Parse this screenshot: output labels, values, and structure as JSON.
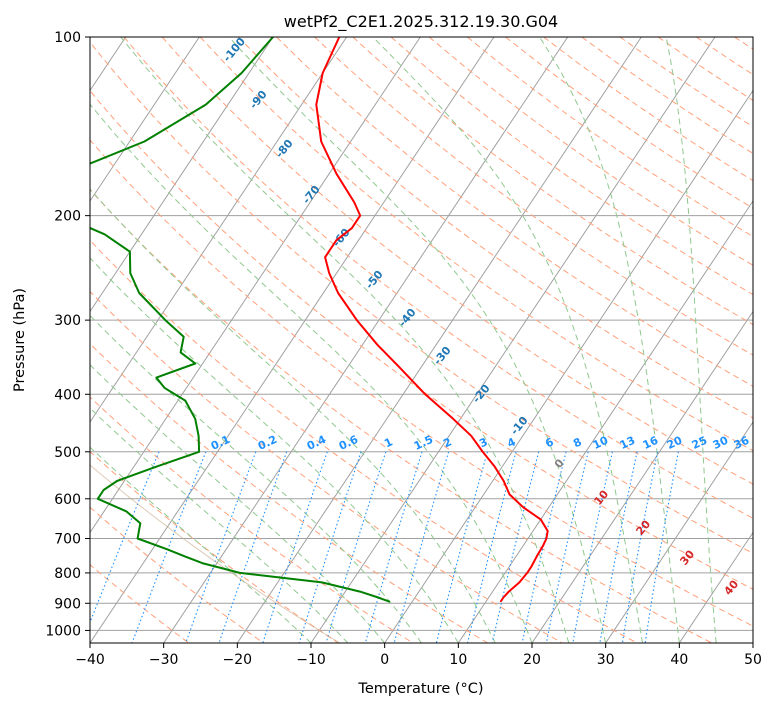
{
  "chart_data": {
    "type": "line",
    "subtype": "skew-T log-P diagram",
    "title": "wetPf2_C2E1.2025.312.19.30.G04",
    "xlabel": "Temperature (°C)",
    "ylabel": "Pressure (hPa)",
    "xlim": [
      -40,
      50
    ],
    "ylim": [
      1050,
      100
    ],
    "y_scale": "log",
    "x_ticks": [
      -40,
      -30,
      -20,
      -10,
      0,
      10,
      20,
      30,
      40,
      50
    ],
    "y_ticks": [
      100,
      200,
      300,
      400,
      500,
      600,
      700,
      800,
      900,
      1000
    ],
    "grid": true,
    "series": [
      {
        "color": "#ff0000",
        "points": [
          [
            100,
            -61
          ],
          [
            115,
            -60
          ],
          [
            130,
            -58
          ],
          [
            150,
            -54
          ],
          [
            170,
            -49
          ],
          [
            190,
            -44
          ],
          [
            200,
            -42
          ],
          [
            210,
            -42
          ],
          [
            220,
            -43
          ],
          [
            235,
            -43
          ],
          [
            250,
            -41
          ],
          [
            270,
            -38
          ],
          [
            300,
            -33
          ],
          [
            330,
            -28
          ],
          [
            360,
            -23
          ],
          [
            400,
            -17
          ],
          [
            440,
            -11
          ],
          [
            470,
            -7
          ],
          [
            500,
            -4
          ],
          [
            530,
            -1
          ],
          [
            560,
            1.5
          ],
          [
            590,
            3.5
          ],
          [
            620,
            6.5
          ],
          [
            650,
            10
          ],
          [
            680,
            12
          ],
          [
            700,
            12.5
          ],
          [
            720,
            12.7
          ],
          [
            750,
            12.8
          ],
          [
            780,
            13
          ],
          [
            800,
            13
          ],
          [
            830,
            12.8
          ],
          [
            860,
            12.2
          ],
          [
            880,
            12
          ],
          [
            895,
            12
          ]
        ]
      },
      {
        "color": "#008000",
        "points": [
          [
            100,
            -70
          ],
          [
            115,
            -71
          ],
          [
            130,
            -73
          ],
          [
            150,
            -78
          ],
          [
            165,
            -84
          ],
          [
            180,
            -86
          ],
          [
            195,
            -85
          ],
          [
            205,
            -80
          ],
          [
            215,
            -75
          ],
          [
            230,
            -70
          ],
          [
            250,
            -68
          ],
          [
            270,
            -65
          ],
          [
            300,
            -59
          ],
          [
            320,
            -55
          ],
          [
            340,
            -54
          ],
          [
            355,
            -51
          ],
          [
            375,
            -55
          ],
          [
            390,
            -53
          ],
          [
            410,
            -49
          ],
          [
            440,
            -46
          ],
          [
            470,
            -44
          ],
          [
            500,
            -42.5
          ],
          [
            530,
            -47
          ],
          [
            560,
            -51
          ],
          [
            580,
            -52
          ],
          [
            600,
            -52
          ],
          [
            630,
            -47
          ],
          [
            660,
            -44
          ],
          [
            700,
            -43
          ],
          [
            730,
            -38
          ],
          [
            750,
            -35
          ],
          [
            770,
            -32
          ],
          [
            800,
            -26
          ],
          [
            830,
            -14
          ],
          [
            860,
            -8
          ],
          [
            880,
            -5
          ],
          [
            895,
            -3
          ]
        ]
      }
    ],
    "isotherm_labels": [
      "0",
      "10",
      "20",
      "30",
      "40"
    ],
    "dry_adiabat_labels": [
      "-100",
      "-90",
      "-80",
      "-70",
      "-60",
      "-50",
      "-40",
      "-30",
      "-20",
      "-10"
    ],
    "mixing_ratio_labels": [
      "0.1",
      "0.2",
      "0.4",
      "0.6",
      "1",
      "1.5",
      "2",
      "3",
      "4",
      "6",
      "8",
      "10",
      "13",
      "16",
      "20",
      "25",
      "30",
      "36"
    ],
    "colors": {
      "temperature": "#ff0000",
      "dewpoint": "#008000",
      "dry_adiabat": "#ffa07a",
      "moist_adiabat": "#90c890",
      "mixing_ratio": "#1e90ff",
      "grid": "#a0a0a0",
      "isotherm_label_zero": "#808080",
      "isotherm_label": "#d62728",
      "adiabat_label": "#1f77b4",
      "mixing_label": "#1e90ff"
    }
  }
}
